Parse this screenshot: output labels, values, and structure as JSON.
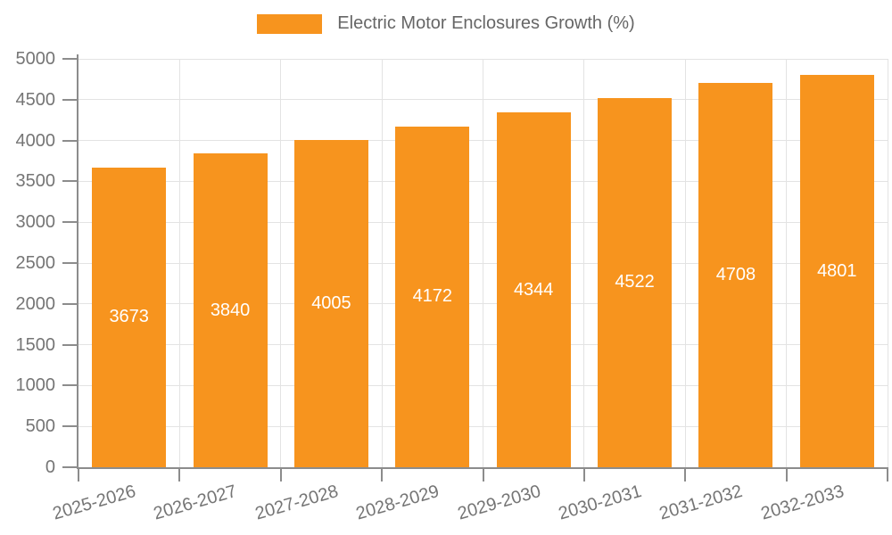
{
  "chart_data": {
    "type": "bar",
    "title": "Electric Motor Enclosures Growth (%)",
    "legend": {
      "label": "Electric Motor Enclosures Growth (%)",
      "position": "top-center"
    },
    "categories": [
      "2025-2026",
      "2026-2027",
      "2027-2028",
      "2028-2029",
      "2029-2030",
      "2030-2031",
      "2031-2032",
      "2032-2033"
    ],
    "values": [
      3673,
      3840,
      4005,
      4172,
      4344,
      4522,
      4708,
      4801
    ],
    "xlabel": "",
    "ylabel": "",
    "ylim": [
      0,
      5000
    ],
    "y_ticks": [
      0,
      500,
      1000,
      1500,
      2000,
      2500,
      3000,
      3500,
      4000,
      4500,
      5000
    ],
    "grid": true,
    "x_label_rotation_deg": -16,
    "bar_labels_inside": true,
    "colors": {
      "bar": "#f7941e",
      "bar_label": "#ffffff",
      "axis": "#8c8c8c",
      "grid": "#e3e3e3",
      "tick_label": "#757575",
      "legend_text": "#666666",
      "background": "#ffffff"
    }
  }
}
